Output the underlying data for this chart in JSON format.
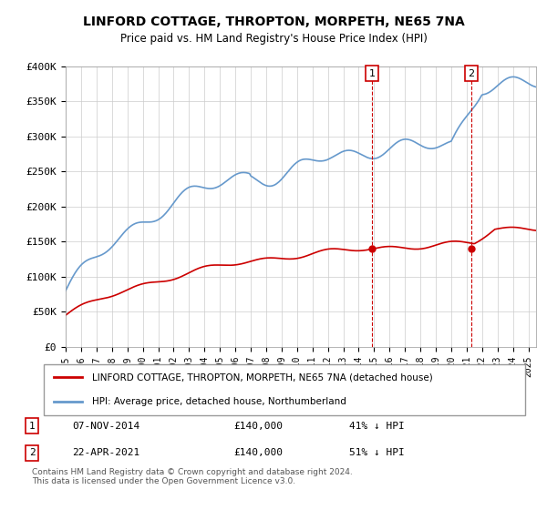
{
  "title": "LINFORD COTTAGE, THROPTON, MORPETH, NE65 7NA",
  "subtitle": "Price paid vs. HM Land Registry's House Price Index (HPI)",
  "ylabel": "",
  "xlabel": "",
  "ylim": [
    0,
    400000
  ],
  "xlim": [
    1995,
    2025.5
  ],
  "yticks": [
    0,
    50000,
    100000,
    150000,
    200000,
    250000,
    300000,
    350000,
    400000
  ],
  "ytick_labels": [
    "£0",
    "£50K",
    "£100K",
    "£150K",
    "£200K",
    "£250K",
    "£300K",
    "£350K",
    "£400K"
  ],
  "line1_color": "#cc0000",
  "line2_color": "#6699cc",
  "marker1_x": 2014.855,
  "marker2_x": 2021.31,
  "marker1_y": 140000,
  "marker2_y": 140000,
  "transaction1": [
    "1",
    "07-NOV-2014",
    "£140,000",
    "41% ↓ HPI"
  ],
  "transaction2": [
    "2",
    "22-APR-2021",
    "£140,000",
    "51% ↓ HPI"
  ],
  "legend_line1": "LINFORD COTTAGE, THROPTON, MORPETH, NE65 7NA (detached house)",
  "legend_line2": "HPI: Average price, detached house, Northumberland",
  "footnote": "Contains HM Land Registry data © Crown copyright and database right 2024.\nThis data is licensed under the Open Government Licence v3.0.",
  "background_color": "#ffffff",
  "grid_color": "#cccccc"
}
